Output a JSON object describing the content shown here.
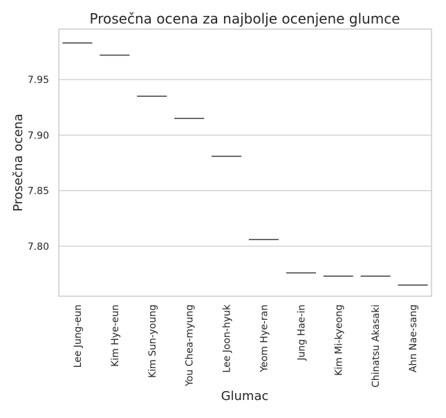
{
  "chart_data": {
    "type": "box",
    "title": "Prosečna ocena za najbolje ocenjene glumce",
    "xlabel": "Glumac",
    "ylabel": "Prosečna ocena",
    "categories": [
      "Lee Jung-eun",
      "Kim Hye-eun",
      "Kim Sun-young",
      "You Chea-myung",
      "Lee Joon-hyuk",
      "Yeom Hye-ran",
      "Jung Hae-in",
      "Kim Mi-kyeong",
      "Chinatsu Akasaki",
      "Ahn Nae-sang"
    ],
    "values": [
      7.983,
      7.972,
      7.935,
      7.915,
      7.881,
      7.806,
      7.776,
      7.773,
      7.773,
      7.765
    ],
    "ylim": [
      7.755,
      7.9955
    ],
    "yticks": [
      7.8,
      7.85,
      7.9,
      7.95
    ],
    "ytick_labels": [
      "7.80",
      "7.85",
      "7.90",
      "7.95"
    ],
    "grid": true,
    "colors": {
      "frame": "#cccccc",
      "grid": "#cccccc",
      "line": "#4a4a4a",
      "text": "#262626"
    }
  }
}
